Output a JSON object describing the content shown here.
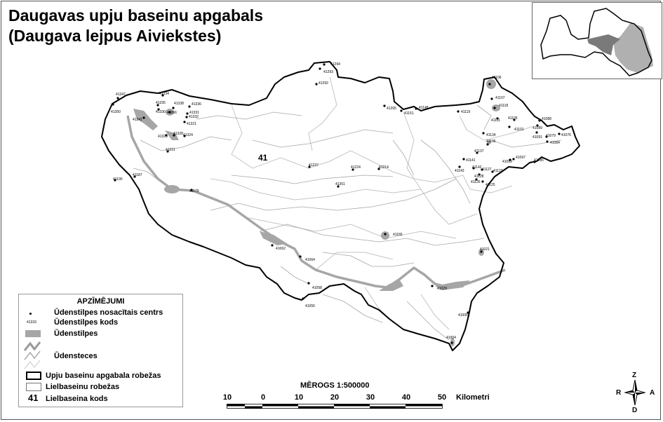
{
  "title": {
    "line1": "Daugavas upju baseinu apgabals",
    "line2": "(Daugava lejpus Aiviekstes)"
  },
  "basin_code": "41",
  "colors": {
    "water": "#a6a6a6",
    "inset_region_dark": "#7a7a7a",
    "inset_region_light": "#b0b0b0",
    "boundary": "#000000",
    "subbasin_boundary": "#bdbdbd"
  },
  "water_body_codes": [
    "41347",
    "41350",
    "41334",
    "41335",
    "41338",
    "41336",
    "41330",
    "41366",
    "41331",
    "41332",
    "41321",
    "41341",
    "41329",
    "41328",
    "41324",
    "41211",
    "41187",
    "41190",
    "41179",
    "41294",
    "41293",
    "41292",
    "41265",
    "41151",
    "41148",
    "41237",
    "41224",
    "41214",
    "41351",
    "41106",
    "41107",
    "41118",
    "41119",
    "41111",
    "41105",
    "41101",
    "41088",
    "41089",
    "41091",
    "41079",
    "41076",
    "41084",
    "41134",
    "41136",
    "41137",
    "41097",
    "41099",
    "41085",
    "41141",
    "41143",
    "41142",
    "41127",
    "41123",
    "41128",
    "41126",
    "41125",
    "41165",
    "41062",
    "41064",
    "41021",
    "41058",
    "41029",
    "41055",
    "41005",
    "41004"
  ],
  "legend": {
    "title": "APZĪMĒJUMI",
    "items": [
      {
        "symbol": "dot",
        "label": "Ūdenstilpes nosacītais centrs"
      },
      {
        "symbol": "code-sample",
        "sample": "41333",
        "label": "Ūdenstilpes kods"
      },
      {
        "symbol": "gray-fill",
        "label": "Ūdenstilpes"
      },
      {
        "symbol": "river-lines",
        "label": "Ūdensteces"
      },
      {
        "symbol": "thick-box",
        "label": "Upju baseinu apgabala robežas"
      },
      {
        "symbol": "thin-box",
        "label": "Lielbaseinu robežas"
      },
      {
        "symbol": "code",
        "sample": "41",
        "label": "Lielbaseina kods"
      }
    ]
  },
  "scale": {
    "title": "MĒROGS  1:500000",
    "ticks": [
      "10",
      "0",
      "10",
      "20",
      "30",
      "40",
      "50"
    ],
    "unit": "Kilometri"
  },
  "compass": {
    "n": "Z",
    "s": "D",
    "e": "A",
    "w": "R"
  }
}
